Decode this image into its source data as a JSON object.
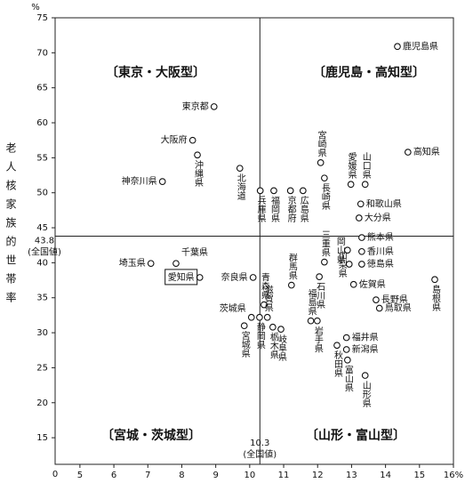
{
  "chart_data": {
    "type": "scatter",
    "ylabel": "老人核家族的世帯率",
    "y_unit": "%",
    "axis_break_label": "0",
    "xlim": [
      4.27,
      16
    ],
    "ylim": [
      11.2,
      75
    ],
    "xticks": [
      5,
      6,
      7,
      8,
      9,
      10,
      11,
      12,
      13,
      14,
      15,
      {
        "value": 16,
        "label": "16%"
      }
    ],
    "yticks": [
      15,
      20,
      25,
      30,
      35,
      40,
      45,
      50,
      55,
      60,
      65,
      70,
      75
    ],
    "reference_lines": [
      {
        "axis": "y",
        "value": 43.8,
        "note": "(全国値)"
      },
      {
        "axis": "x",
        "value": 10.3,
        "note": "(全国値)"
      }
    ],
    "quadrant_labels": [
      "〔東京・大阪型〕",
      "〔鹿児島・高知型〕",
      "〔宮城・茨城型〕",
      "〔山形・富山型〕"
    ],
    "highlight_index": 38,
    "point_labels": [
      "鹿児島県",
      "高知県",
      "東京都",
      "大阪府",
      "沖縄県",
      "神奈川県",
      "北海道",
      "兵庫県",
      "福岡県",
      "京都府",
      "広島県",
      "宮崎県",
      "長崎県",
      "愛媛県",
      "山口県",
      "和歌山県",
      "大分県",
      "熊本県",
      "岡山県",
      "香川県",
      "徳島県",
      "山梨県",
      "佐賀県",
      "長野県",
      "鳥取県",
      "島根県",
      "三重県",
      "石川県",
      "群馬県",
      "福島県",
      "岩手県",
      "秋田県",
      "福井県",
      "新潟県",
      "富山県",
      "山形県",
      "千葉県",
      "埼玉県",
      "愛知県",
      "奈良県",
      "青森県",
      "茨城県",
      "宮城県",
      "静岡県",
      "滋賀県",
      "栃木県",
      "岐阜県"
    ],
    "x": [
      14.35,
      14.66,
      8.95,
      8.32,
      8.46,
      7.43,
      9.71,
      10.31,
      10.71,
      11.2,
      11.57,
      12.09,
      12.2,
      12.98,
      13.4,
      13.27,
      13.22,
      13.3,
      12.88,
      13.3,
      13.3,
      12.93,
      13.06,
      13.72,
      13.82,
      15.45,
      12.2,
      12.05,
      11.23,
      11.8,
      11.99,
      12.57,
      12.85,
      12.85,
      12.88,
      13.4,
      7.83,
      7.09,
      8.53,
      10.1,
      10.42,
      10.05,
      9.84,
      10.29,
      10.52,
      10.68,
      10.92
    ],
    "values": [
      70.9,
      55.8,
      62.3,
      57.5,
      55.4,
      51.6,
      53.5,
      50.3,
      50.3,
      50.3,
      50.3,
      54.3,
      52.1,
      51.2,
      51.2,
      48.4,
      46.4,
      43.6,
      41.8,
      41.6,
      39.8,
      39.8,
      36.9,
      34.7,
      33.5,
      37.6,
      40.1,
      38.0,
      36.8,
      31.7,
      31.7,
      28.2,
      29.3,
      27.6,
      26.1,
      23.9,
      39.9,
      39.9,
      37.9,
      37.9,
      34.0,
      32.2,
      31.0,
      32.2,
      32.2,
      30.8,
      30.5
    ]
  }
}
